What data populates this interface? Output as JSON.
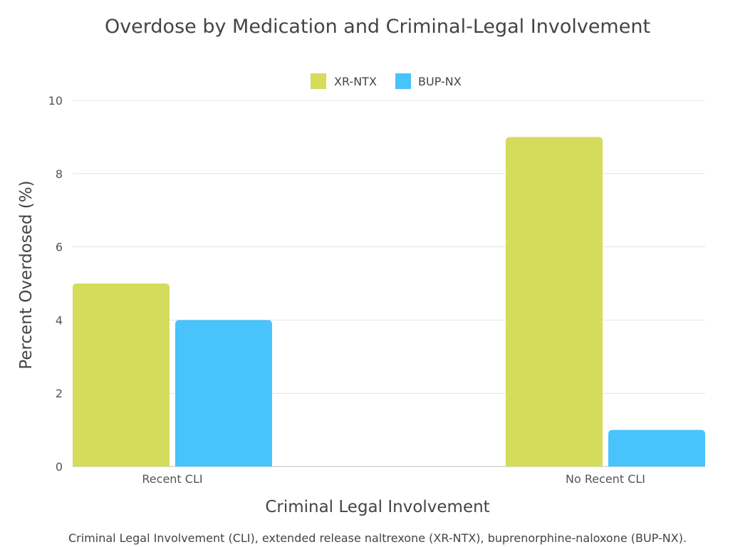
{
  "chart_data": {
    "type": "bar",
    "title": "Overdose by Medication and Criminal-Legal Involvement",
    "xlabel": "Criminal Legal Involvement",
    "ylabel": "Percent Overdosed (%)",
    "categories": [
      "Recent CLI",
      "No Recent CLI"
    ],
    "series": [
      {
        "name": "XR-NTX",
        "values": [
          5,
          9
        ],
        "color": "#d4dc5c"
      },
      {
        "name": "BUP-NX",
        "values": [
          4,
          1
        ],
        "color": "#48c3fb"
      }
    ],
    "ylim": [
      0,
      10
    ],
    "yticks": [
      0,
      2,
      4,
      6,
      8,
      10
    ],
    "grid": true,
    "legend": "top-center"
  },
  "footnote": "Criminal Legal Involvement (CLI), extended release naltrexone (XR-NTX), buprenorphine-naloxone (BUP-NX)."
}
